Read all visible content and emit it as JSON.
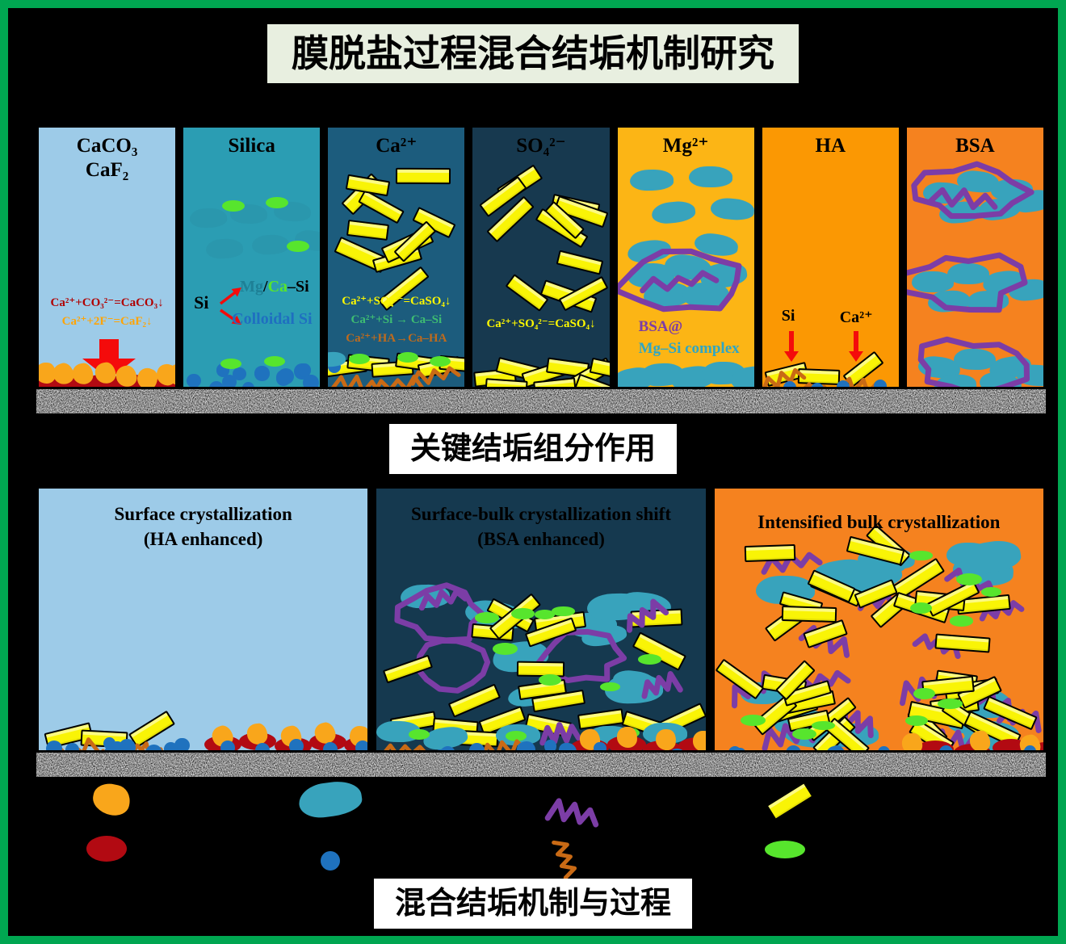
{
  "title": {
    "text": "膜脱盐过程混合结垢机制研究"
  },
  "section_labels": {
    "components": "关键结垢组分作用",
    "mechanism": "混合结垢机制与过程"
  },
  "top_panels": [
    {
      "header_line1": "CaCO₃",
      "header_line2": "CaF₂",
      "eq1": "Ca²⁺+CO₃²⁻=CaCO₃↓",
      "eq2": "Ca²⁺+2F⁻=CaF₂↓"
    },
    {
      "header": "Silica",
      "si_label": "Si",
      "branch_mg": "Mg",
      "branch_slash": "/",
      "branch_ca": "Ca",
      "branch_si": "–Si",
      "branch_colloidal": "Colloidal Si"
    },
    {
      "header": "Ca²⁺",
      "eq1": "Ca²⁺+SO₄²⁻=CaSO₄↓",
      "eq2": "Ca²⁺+Si → Ca–Si",
      "eq3": "Ca²⁺+HA→Ca–HA"
    },
    {
      "header": "SO₄²⁻",
      "eq1": "Ca²⁺+SO₄²⁻=CaSO₄↓"
    },
    {
      "header": "Mg²⁺",
      "label1": "BSA@",
      "label2": "Mg–Si complex"
    },
    {
      "header": "HA",
      "label_si": "Si",
      "label_ca": "Ca²⁺"
    },
    {
      "header": "BSA"
    }
  ],
  "bottom_panels": [
    {
      "title1": "Surface crystallization",
      "title2": "(HA enhanced)"
    },
    {
      "title1": "Surface-bulk crystallization shift",
      "title2": "(BSA enhanced)"
    },
    {
      "title1": "Intensified bulk crystallization"
    }
  ],
  "legend": {
    "items": [
      {
        "icon": "caf2-orange-blob-icon",
        "color": "#F9A61B"
      },
      {
        "icon": "caco3-red-particle-icon",
        "color": "#B20A12"
      },
      {
        "icon": "mg-si-teal-cloud-icon",
        "color": "#38A3BC"
      },
      {
        "icon": "colloidal-si-blue-particle-icon",
        "color": "#1F72BE"
      },
      {
        "icon": "bsa-purple-squiggle-icon",
        "color": "#7C3DA6"
      },
      {
        "icon": "ha-orange-squiggle-icon",
        "color": "#C96A15"
      },
      {
        "icon": "caso4-yellow-crystal-icon",
        "color": "#F9F406"
      },
      {
        "icon": "ca-si-green-particle-icon",
        "color": "#57E52D"
      }
    ]
  },
  "colors": {
    "frame_green": "#00A651",
    "background": "#000000",
    "panel_caco3_bg": "#9DCBE8",
    "panel_silica_bg": "#2B9DB3",
    "panel_ca_bg": "#1C5C7D",
    "panel_so4_bg": "#17394F",
    "panel_mg_bg": "#FCB515",
    "panel_ha_bg": "#FB9803",
    "panel_bsa_bg": "#F5821F",
    "bottom_surface_bg": "#9DCBE8",
    "bottom_shift_bg": "#15394F",
    "bottom_bulk_bg": "#F5821F",
    "crystal_yellow": "#F9F406",
    "cloud_teal": "#38A3BC",
    "ghost_teal": "#2A93A8",
    "particle_green": "#57E52D",
    "particle_blue": "#1F72BE",
    "squiggle_purple": "#7C3DA6",
    "squiggle_orange": "#C96A15",
    "particle_red": "#B20A12",
    "blob_orange": "#F9A61B",
    "arrow_red": "#F40B0B",
    "eq_darkred": "#B00000",
    "eq_orange": "#FFA405",
    "eq_yellow": "#FDF800",
    "eq_green": "#3EBD72",
    "eq_brown": "#BF6B1D",
    "text_purple": "#7C3DA6",
    "text_teal": "#2FA6C4",
    "text_blue": "#1F6FC0",
    "text_ghost": "#1E8096",
    "title_box_bg": "#E8EFE0",
    "label_box_bg": "#FFFFFF",
    "membrane_gray": "#DCDCDC"
  }
}
